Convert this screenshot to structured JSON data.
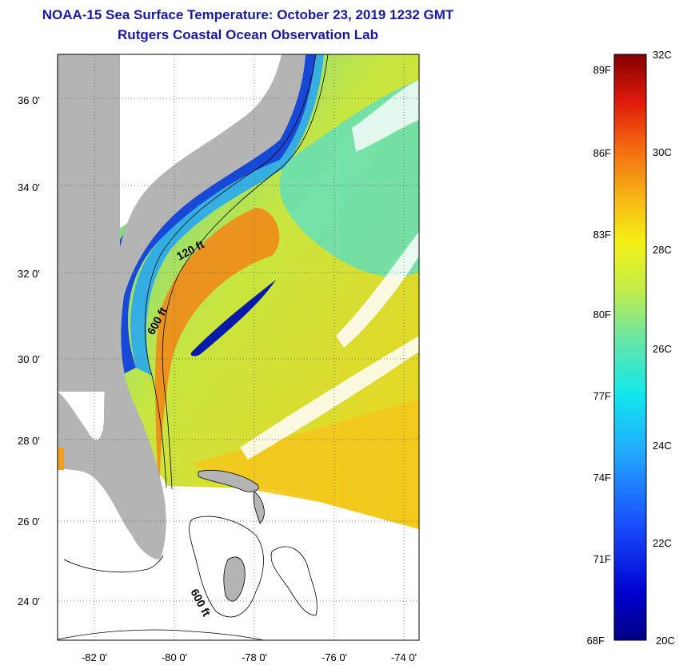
{
  "header": {
    "title": "NOAA-15 Sea Surface Temperature:  October 23, 2019 1232 GMT",
    "subtitle": "Rutgers Coastal Ocean Observation Lab"
  },
  "map": {
    "lon_range": [
      -83,
      -73
    ],
    "lat_range": [
      23,
      37
    ],
    "lat_labels": [
      "36 0'",
      "34 0'",
      "32 0'",
      "30 0'",
      "28 0'",
      "26 0'",
      "24 0'"
    ],
    "lon_labels": [
      "-82 0'",
      "-80 0'",
      "-78 0'",
      "-76 0'",
      "-74 0'"
    ],
    "contour_labels": [
      "120 ft",
      "600 ft",
      "600 ft"
    ],
    "land_color": "#b4b4b4",
    "nodata_color": "#ffffff"
  },
  "colorbar": {
    "fahrenheit_labels": [
      "89F",
      "86F",
      "83F",
      "80F",
      "77F",
      "74F",
      "71F",
      "68F"
    ],
    "celsius_labels": [
      "32C",
      "30C",
      "28C",
      "26C",
      "24C",
      "22C",
      "20C"
    ]
  }
}
